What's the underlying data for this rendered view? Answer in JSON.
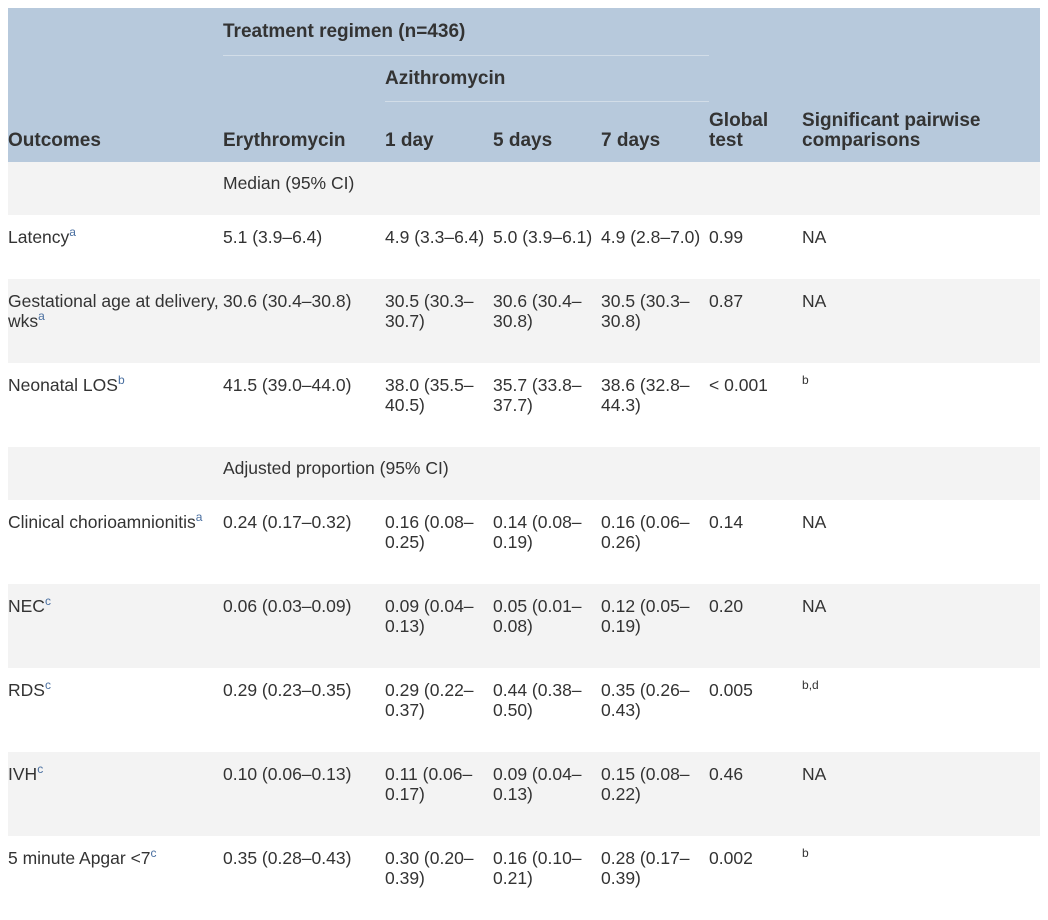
{
  "header": {
    "group_label": "Treatment regimen (n=436)",
    "subgroup_label": "Azithromycin",
    "col_outcomes": "Outcomes",
    "col_erythro": "Erythromycin",
    "col_1day": "1 day",
    "col_5days": "5 days",
    "col_7days": "7 days",
    "col_global_line1": "Global",
    "col_global_line2": "test",
    "col_pairwise_line1": "Significant pairwise",
    "col_pairwise_line2": "comparisons"
  },
  "sections": [
    {
      "label": "Median (95% CI)",
      "rows": [
        {
          "outcome": "Latency",
          "sup": "a",
          "erythro": "5.1 (3.9–6.4)",
          "d1": "4.9 (3.3–6.4)",
          "d5": "5.0 (3.9–6.1)",
          "d7": "4.9 (2.8–7.0)",
          "global": "0.99",
          "pairwise": "NA",
          "pairwise_sup": ""
        },
        {
          "outcome": "Gestational age at delivery, wks",
          "sup": "a",
          "erythro": "30.6 (30.4–30.8)",
          "d1": "30.5 (30.3–30.7)",
          "d5": "30.6 (30.4–30.8)",
          "d7": "30.5 (30.3–30.8)",
          "global": "0.87",
          "pairwise": "NA",
          "pairwise_sup": ""
        },
        {
          "outcome": "Neonatal LOS",
          "sup": "b",
          "erythro": "41.5 (39.0–44.0)",
          "d1": "38.0 (35.5–40.5)",
          "d5": "35.7 (33.8–37.7)",
          "d7": "38.6 (32.8–44.3)",
          "global": "< 0.001",
          "pairwise": "",
          "pairwise_sup": "b"
        }
      ]
    },
    {
      "label": "Adjusted proportion (95% CI)",
      "rows": [
        {
          "outcome": "Clinical chorioamnionitis",
          "sup": "a",
          "erythro": "0.24 (0.17–0.32)",
          "d1": "0.16 (0.08–0.25)",
          "d5": "0.14 (0.08–0.19)",
          "d7": "0.16 (0.06–0.26)",
          "global": "0.14",
          "pairwise": "NA",
          "pairwise_sup": ""
        },
        {
          "outcome": "NEC",
          "sup": "c",
          "erythro": "0.06 (0.03–0.09)",
          "d1": "0.09 (0.04–0.13)",
          "d5": "0.05 (0.01–0.08)",
          "d7": "0.12 (0.05–0.19)",
          "global": "0.20",
          "pairwise": "NA",
          "pairwise_sup": ""
        },
        {
          "outcome": "RDS",
          "sup": "c",
          "erythro": "0.29 (0.23–0.35)",
          "d1": "0.29 (0.22–0.37)",
          "d5": "0.44 (0.38–0.50)",
          "d7": "0.35 (0.26–0.43)",
          "global": "0.005",
          "pairwise": "",
          "pairwise_sup": "b,d"
        },
        {
          "outcome": "IVH",
          "sup": "c",
          "erythro": "0.10 (0.06–0.13)",
          "d1": "0.11 (0.06–0.17)",
          "d5": "0.09 (0.04–0.13)",
          "d7": "0.15 (0.08–0.22)",
          "global": "0.46",
          "pairwise": "NA",
          "pairwise_sup": ""
        },
        {
          "outcome": "5 minute Apgar <7",
          "sup": "c",
          "erythro": "0.35 (0.28–0.43)",
          "d1": "0.30 (0.20–0.39)",
          "d5": "0.16 (0.10–0.21)",
          "d7": "0.28 (0.17–0.39)",
          "global": "0.002",
          "pairwise": "",
          "pairwise_sup": "b"
        }
      ]
    }
  ]
}
